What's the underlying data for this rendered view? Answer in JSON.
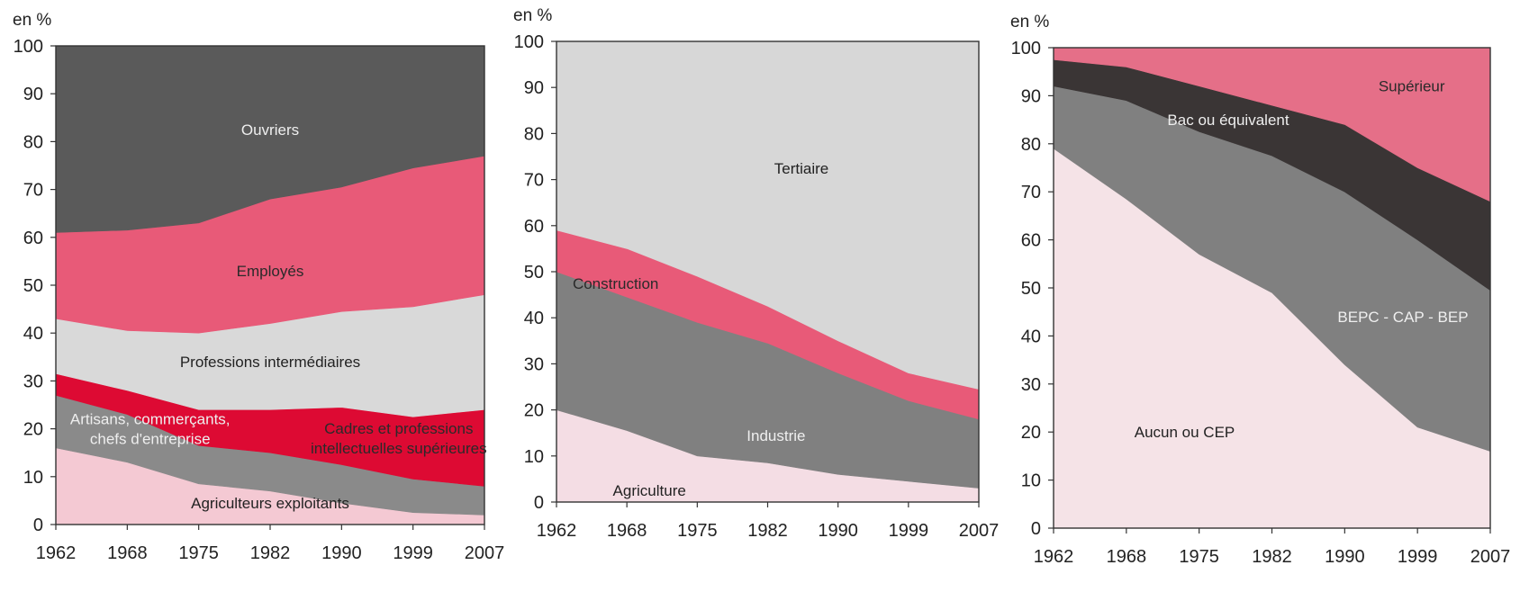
{
  "chart_data": [
    {
      "type": "area",
      "stacked": true,
      "unit_label": "en %",
      "x": [
        "1962",
        "1968",
        "1975",
        "1982",
        "1990",
        "1999",
        "2007"
      ],
      "y_ticks": [
        "0",
        "10",
        "20",
        "30",
        "40",
        "50",
        "60",
        "70",
        "80",
        "90",
        "100"
      ],
      "ylim": [
        0,
        100
      ],
      "series": [
        {
          "name": "Agriculteurs exploitants",
          "values": [
            16,
            13,
            8.5,
            7,
            4.5,
            2.5,
            2
          ],
          "color": "#f4c9d3"
        },
        {
          "name": "Artisans, commerçants, chefs d'entreprise",
          "values": [
            11,
            10,
            8,
            8,
            8,
            7,
            6
          ],
          "color": "#8a8a8a"
        },
        {
          "name": "Cadres et professions intellectuelles supérieures",
          "values": [
            4.5,
            5,
            7.5,
            9,
            12,
            13,
            16
          ],
          "color": "#dd0a33"
        },
        {
          "name": "Professions intermédiaires",
          "values": [
            11.5,
            12.5,
            16,
            18,
            20,
            23,
            24
          ],
          "color": "#d9d9d9"
        },
        {
          "name": "Employés",
          "values": [
            18,
            21,
            23,
            26,
            26,
            29,
            29
          ],
          "color": "#e85a78"
        },
        {
          "name": "Ouvriers",
          "values": [
            39,
            38.5,
            37,
            32,
            29.5,
            25.5,
            23
          ],
          "color": "#5a5a5a"
        }
      ]
    },
    {
      "type": "area",
      "stacked": true,
      "unit_label": "en %",
      "x": [
        "1962",
        "1968",
        "1975",
        "1982",
        "1990",
        "1999",
        "2007"
      ],
      "y_ticks": [
        "0",
        "10",
        "20",
        "30",
        "40",
        "50",
        "60",
        "70",
        "80",
        "90",
        "100"
      ],
      "ylim": [
        0,
        100
      ],
      "series": [
        {
          "name": "Agriculture",
          "values": [
            20,
            15.5,
            10,
            8.5,
            6,
            4.5,
            3
          ],
          "color": "#f4dde4"
        },
        {
          "name": "Industrie",
          "values": [
            30,
            29,
            29,
            26,
            22,
            17.5,
            15
          ],
          "color": "#808080"
        },
        {
          "name": "Construction",
          "values": [
            9,
            10.5,
            10,
            8,
            7,
            6,
            6.5
          ],
          "color": "#e85a78"
        },
        {
          "name": "Tertiaire",
          "values": [
            41,
            45,
            51,
            57.5,
            65,
            72,
            75.5
          ],
          "color": "#d7d7d7"
        }
      ]
    },
    {
      "type": "area",
      "stacked": true,
      "unit_label": "en %",
      "x": [
        "1962",
        "1968",
        "1975",
        "1982",
        "1990",
        "1999",
        "2007"
      ],
      "y_ticks": [
        "0",
        "10",
        "20",
        "30",
        "40",
        "50",
        "60",
        "70",
        "80",
        "90",
        "100"
      ],
      "ylim": [
        0,
        100
      ],
      "series": [
        {
          "name": "Aucun ou CEP",
          "values": [
            79,
            68.5,
            57,
            49,
            34,
            21,
            16
          ],
          "color": "#f5e3e7"
        },
        {
          "name": "BEPC - CAP - BEP",
          "values": [
            13,
            20.5,
            25.5,
            28.5,
            36,
            39,
            33.5
          ],
          "color": "#808080"
        },
        {
          "name": "Bac ou équivalent",
          "values": [
            5.5,
            7,
            9.5,
            10.5,
            14,
            15,
            18.5
          ],
          "color": "#3a3535"
        },
        {
          "name": "Supérieur",
          "values": [
            2.5,
            4,
            8,
            12,
            16,
            25,
            32
          ],
          "color": "#e56f88"
        }
      ]
    }
  ]
}
